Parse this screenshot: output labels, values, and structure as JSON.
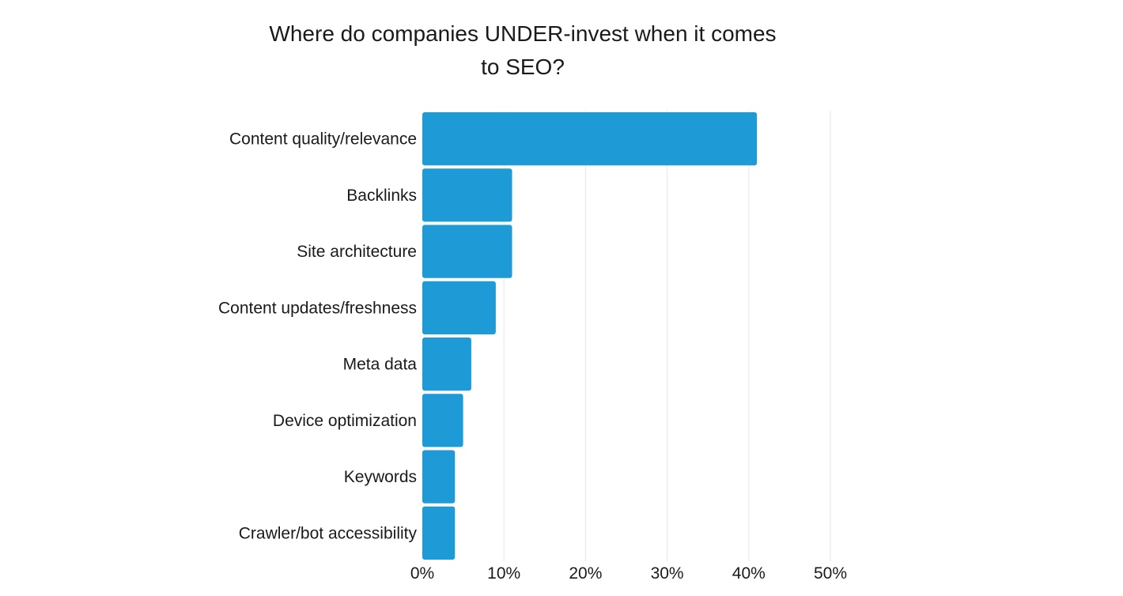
{
  "chart_data": {
    "type": "bar",
    "orientation": "horizontal",
    "title_lines": [
      "Where do companies UNDER-invest when it comes",
      "to SEO?"
    ],
    "categories": [
      "Content quality/relevance",
      "Backlinks",
      "Site architecture",
      "Content updates/freshness",
      "Meta data",
      "Device optimization",
      "Keywords",
      "Crawler/bot accessibility"
    ],
    "values": [
      41,
      11,
      11,
      9,
      6,
      5,
      4,
      4
    ],
    "unit": "%",
    "xlim": [
      0,
      50
    ],
    "x_ticks": [
      0,
      10,
      20,
      30,
      40,
      50
    ],
    "x_tick_labels": [
      "0%",
      "10%",
      "20%",
      "30%",
      "40%",
      "50%"
    ],
    "grid": true,
    "legend": "none",
    "colors": {
      "bar": "#1e9bd7",
      "grid": "#e6e6e6",
      "text": "#1a1a1a"
    }
  }
}
